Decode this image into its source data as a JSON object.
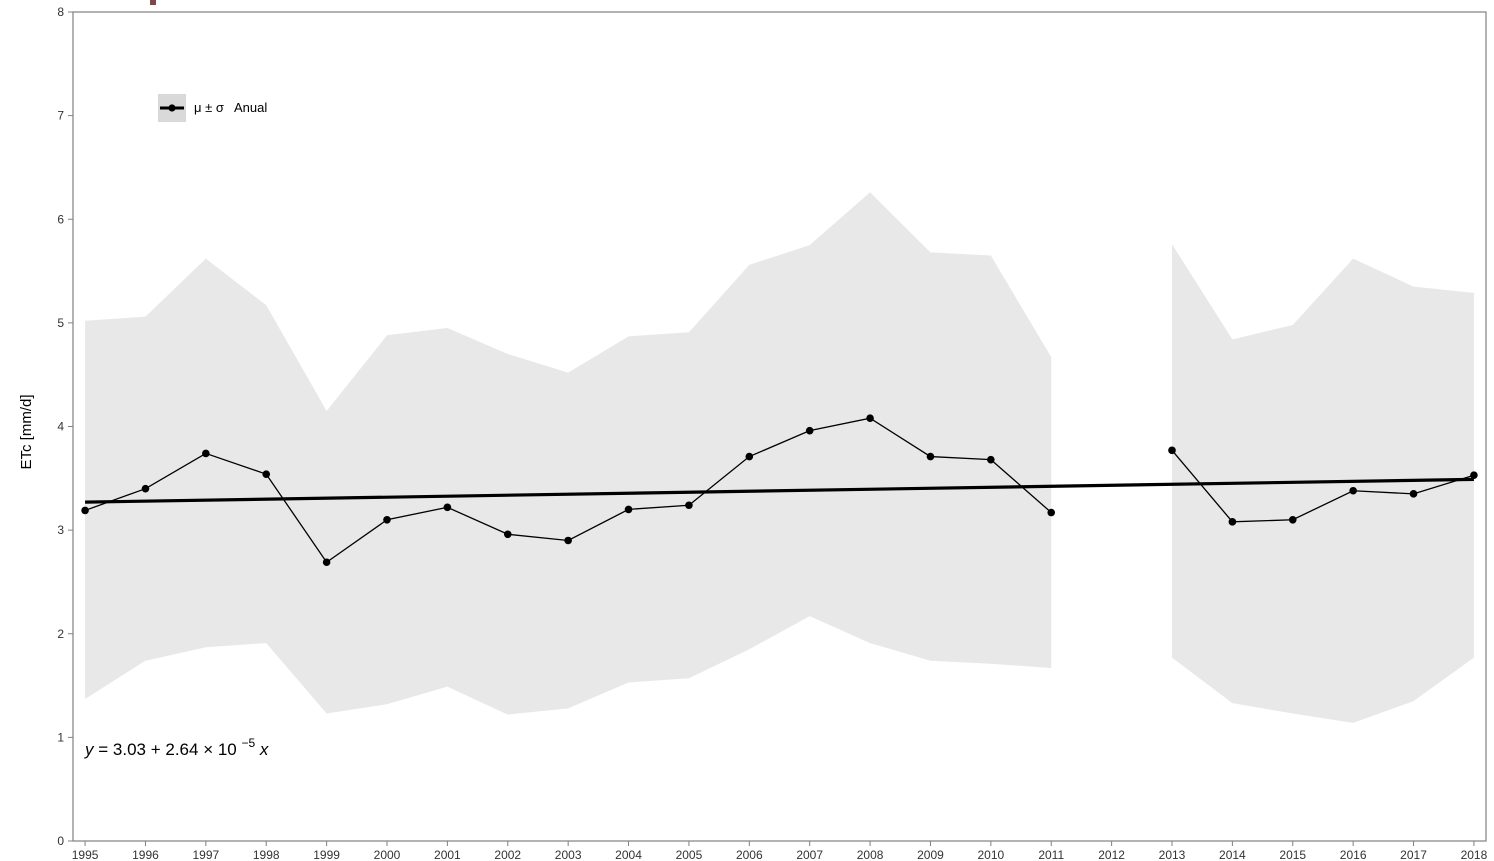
{
  "chart_data": {
    "type": "line",
    "title": "",
    "xlabel": "",
    "ylabel": "ETc [mm/d]",
    "xlim": [
      1994.8,
      2018.2
    ],
    "ylim": [
      0,
      8
    ],
    "x_ticks": [
      1995,
      1996,
      1997,
      1998,
      1999,
      2000,
      2001,
      2002,
      2003,
      2004,
      2005,
      2006,
      2007,
      2008,
      2009,
      2010,
      2011,
      2012,
      2013,
      2014,
      2015,
      2016,
      2017,
      2018
    ],
    "y_ticks": [
      0,
      1,
      2,
      3,
      4,
      5,
      6,
      7,
      8
    ],
    "grid": false,
    "legend": {
      "placement": "top-left",
      "symbol": "μ ± σ",
      "label": "Anual",
      "band_color": "#d9d9d9"
    },
    "series": [
      {
        "name": "Anual",
        "x": [
          1995,
          1996,
          1997,
          1998,
          1999,
          2000,
          2001,
          2002,
          2003,
          2004,
          2005,
          2006,
          2007,
          2008,
          2009,
          2010,
          2011,
          2012,
          2013,
          2014,
          2015,
          2016,
          2017,
          2018
        ],
        "mean": [
          3.19,
          3.4,
          3.74,
          3.54,
          2.69,
          3.1,
          3.22,
          2.96,
          2.9,
          3.2,
          3.24,
          3.71,
          3.96,
          4.08,
          3.71,
          3.68,
          3.17,
          null,
          3.77,
          3.08,
          3.1,
          3.38,
          3.35,
          3.53
        ],
        "upper": [
          5.02,
          5.06,
          5.62,
          5.17,
          4.15,
          4.88,
          4.95,
          4.7,
          4.52,
          4.87,
          4.91,
          5.56,
          5.75,
          6.26,
          5.68,
          5.65,
          4.67,
          null,
          5.76,
          4.84,
          4.98,
          5.62,
          5.35,
          5.29
        ],
        "lower": [
          1.37,
          1.74,
          1.87,
          1.91,
          1.23,
          1.32,
          1.49,
          1.22,
          1.28,
          1.53,
          1.57,
          1.85,
          2.17,
          1.91,
          1.74,
          1.71,
          1.67,
          null,
          1.77,
          1.33,
          1.23,
          1.14,
          1.35,
          1.77
        ]
      }
    ],
    "trend": {
      "intercept": 3.03,
      "slope_label": "2.64 × 10⁻⁵",
      "y_start": 3.27,
      "y_end": 3.49,
      "equation_parts": {
        "y": "y",
        "eq": " = 3.03",
        "plus": " + ",
        "coef": "2.64",
        "times": " × 10",
        "exp": "−5",
        "x": " x"
      }
    },
    "colors": {
      "band": "#e8e8e8",
      "line": "#000000",
      "axis": "#808080",
      "tick_text": "#333333"
    },
    "page_fragment": {
      "color": "#7a4a4a"
    }
  }
}
